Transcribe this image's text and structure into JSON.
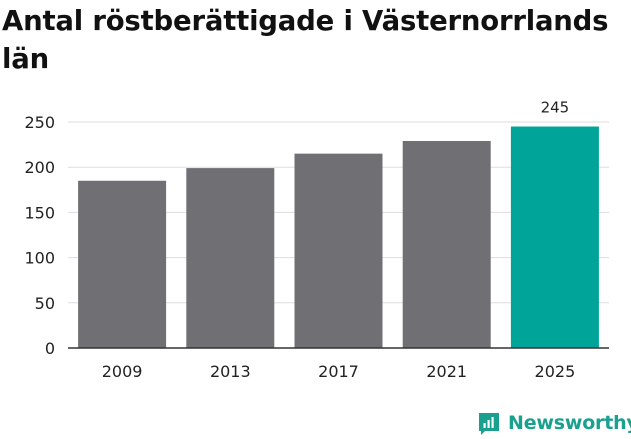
{
  "chart_data": {
    "type": "bar",
    "title": "Antal röstberättigade i Västernorrlands län",
    "categories": [
      "2009",
      "2013",
      "2017",
      "2021",
      "2025"
    ],
    "values": [
      185,
      199,
      215,
      229,
      245
    ],
    "value_labels": [
      "",
      "",
      "",
      "",
      "245"
    ],
    "ylim": [
      0,
      250
    ],
    "yticks": [
      "0",
      "50",
      "100",
      "150",
      "200",
      "250"
    ],
    "xlabel": "",
    "ylabel": "",
    "grid": "horizontal",
    "colors": {
      "bar": "#706f74",
      "highlight": "#00a499",
      "highlight_index": 4,
      "grid": "#dddddd",
      "axis": "#333333"
    }
  },
  "brand": {
    "name": "Newsworthy",
    "icon": "newsworthy-logo-icon",
    "color": "#19a08e"
  }
}
